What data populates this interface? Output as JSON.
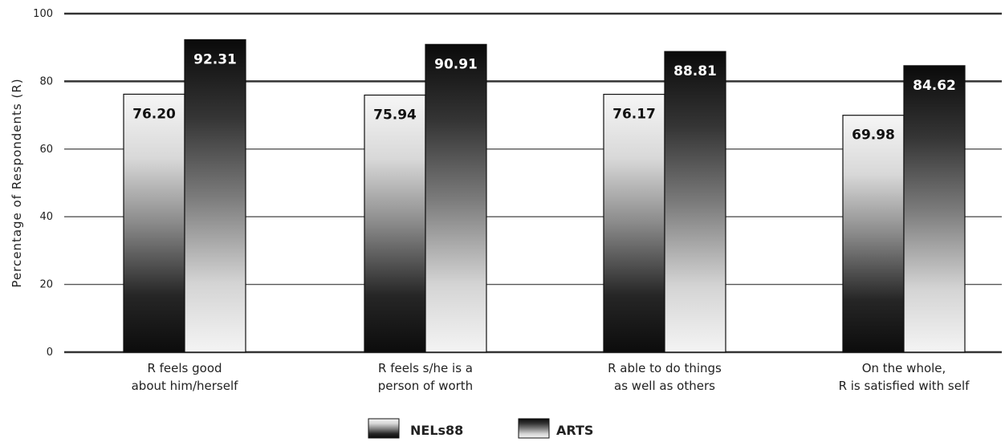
{
  "chart_data": {
    "type": "bar",
    "ylabel": "Percentage of Respondents (R)",
    "xlabel": "",
    "ylim": [
      0,
      100
    ],
    "yticks": [
      0,
      20,
      40,
      60,
      80,
      100
    ],
    "grid": true,
    "legend_position": "bottom-center",
    "categories": [
      [
        "R feels good",
        "about him/herself"
      ],
      [
        "R feels s/he is a",
        "person of worth"
      ],
      [
        "R able to do things",
        "as well as others"
      ],
      [
        "On the whole,",
        "R is satisfied with self"
      ]
    ],
    "series": [
      {
        "name": "NELs88",
        "values": [
          76.2,
          75.94,
          76.17,
          69.98
        ],
        "labels": [
          "76.20",
          "75.94",
          "76.17",
          "69.98"
        ]
      },
      {
        "name": "ARTS",
        "values": [
          92.31,
          90.91,
          88.81,
          84.62
        ],
        "labels": [
          "92.31",
          "90.91",
          "88.81",
          "84.62"
        ]
      }
    ],
    "colors": {
      "nels_light": "#f4f4f4",
      "nels_dark": "#111111",
      "arts_dark": "#0d0d0d",
      "arts_light": "#f2f2f2"
    }
  }
}
